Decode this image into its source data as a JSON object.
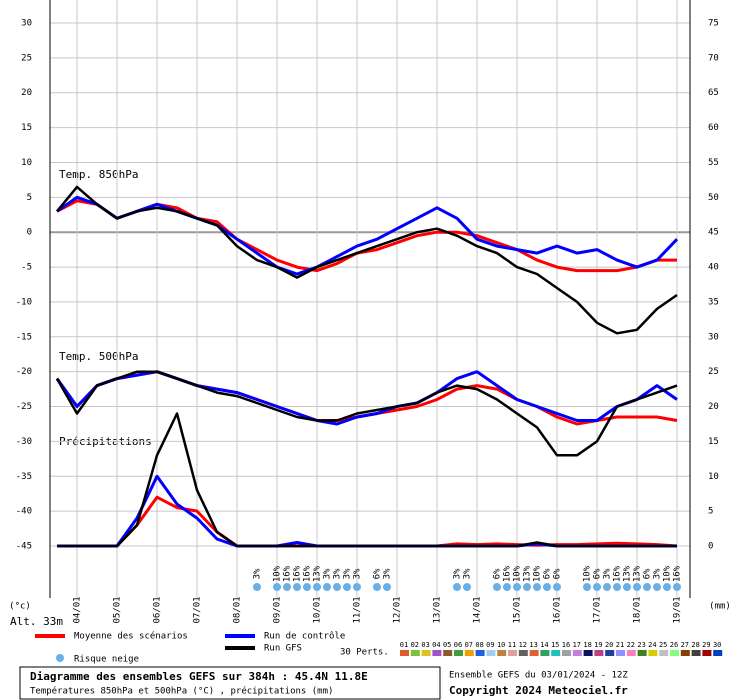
{
  "chart_data": {
    "type": "line",
    "x": [
      -0.5,
      0,
      0.5,
      1,
      1.5,
      2,
      2.5,
      3,
      3.5,
      4,
      4.5,
      5,
      5.5,
      6,
      6.5,
      7,
      7.5,
      8,
      8.5,
      9,
      9.5,
      10,
      10.5,
      11,
      11.5,
      12,
      12.5,
      13,
      13.5,
      14,
      14.5,
      15
    ],
    "xlim": [
      -0.675,
      15.325
    ],
    "xticks": [
      {
        "value": 0,
        "label": "04/01"
      },
      {
        "value": 1,
        "label": "05/01"
      },
      {
        "value": 2,
        "label": "06/01"
      },
      {
        "value": 3,
        "label": "07/01"
      },
      {
        "value": 4,
        "label": "08/01"
      },
      {
        "value": 5,
        "label": "09/01"
      },
      {
        "value": 6,
        "label": "10/01"
      },
      {
        "value": 7,
        "label": "11/01"
      },
      {
        "value": 8,
        "label": "12/01"
      },
      {
        "value": 9,
        "label": "13/01"
      },
      {
        "value": 10,
        "label": "14/01"
      },
      {
        "value": 11,
        "label": "15/01"
      },
      {
        "value": 12,
        "label": "16/01"
      },
      {
        "value": 13,
        "label": "17/01"
      },
      {
        "value": 14,
        "label": "18/01"
      },
      {
        "value": 15,
        "label": "19/01"
      }
    ],
    "ylim": [
      -52.46,
      33.3
    ],
    "yticks": [
      30,
      25,
      20,
      15,
      10,
      5,
      0,
      -5,
      -10,
      -15,
      -20,
      -25,
      -30,
      -35,
      -40,
      -45
    ],
    "y2lim": [
      -7.46,
      78.3
    ],
    "y2ticks": [
      75,
      70,
      65,
      60,
      55,
      50,
      45,
      40,
      35,
      30,
      25,
      20,
      15,
      10,
      5,
      0
    ],
    "ylabel": "(°c)",
    "y2label": "(mm)",
    "grid": true,
    "annotations": [
      "Temp. 850hPa",
      "Temp. 500hPa",
      "Précipitations",
      "Alt. 33m"
    ],
    "series": [
      {
        "name": "Moyenne des scénarios",
        "color": "#ff0000",
        "t850": [
          3,
          4.5,
          4,
          2,
          3,
          4,
          3.5,
          2,
          1.5,
          -1,
          -2.5,
          -4,
          -5,
          -5.5,
          -4.5,
          -3,
          -2.5,
          -1.5,
          -0.5,
          0,
          0,
          -0.5,
          -1.5,
          -2.5,
          -4,
          -5,
          -5.5,
          -5.5,
          -5.5,
          -5,
          -4,
          -4
        ],
        "t500": [
          -21,
          -25,
          -22,
          -21,
          -20.5,
          -20,
          -21,
          -22,
          -22.5,
          -23,
          -24,
          -25,
          -26,
          -27,
          -27,
          -26.5,
          -26,
          -25.5,
          -25,
          -24,
          -22.5,
          -22,
          -22.5,
          -24,
          -25,
          -26.5,
          -27.5,
          -27,
          -26.5,
          -26.5,
          -26.5,
          -27
        ],
        "precip": [
          0,
          0,
          0,
          0,
          3,
          7,
          5.5,
          5,
          2,
          0,
          0,
          0,
          0,
          0,
          0,
          0,
          0,
          0,
          0,
          0,
          0.3,
          0.2,
          0.3,
          0.2,
          0.1,
          0.2,
          0.2,
          0.3,
          0.4,
          0.3,
          0.2,
          0
        ]
      },
      {
        "name": "Run de contrôle",
        "color": "#0000ff",
        "t850": [
          3,
          5,
          4,
          2,
          3,
          4,
          3,
          2,
          1,
          -1,
          -3,
          -5,
          -6,
          -5,
          -3.5,
          -2,
          -1,
          0.5,
          2,
          3.5,
          2,
          -1,
          -2,
          -2.5,
          -3,
          -2,
          -3,
          -2.5,
          -4,
          -5,
          -4,
          -1
        ],
        "t500": [
          -21,
          -25,
          -22,
          -21,
          -20.5,
          -20,
          -21,
          -22,
          -22.5,
          -23,
          -24,
          -25,
          -26,
          -27,
          -27.5,
          -26.5,
          -26,
          -25,
          -24.5,
          -23,
          -21,
          -20,
          -22,
          -24,
          -25,
          -26,
          -27,
          -27,
          -25,
          -24,
          -22,
          -24
        ],
        "precip": [
          0,
          0,
          0,
          0,
          4,
          10,
          6,
          4,
          1,
          0,
          0,
          0,
          0.5,
          0,
          0,
          0,
          0,
          0,
          0,
          0,
          0,
          0,
          0,
          0,
          0.3,
          0,
          0,
          0,
          0,
          0,
          0,
          0
        ]
      },
      {
        "name": "Run GFS",
        "color": "#000000",
        "t850": [
          3,
          6.5,
          4,
          2,
          3,
          3.5,
          3,
          2,
          1,
          -2,
          -4,
          -5,
          -6.5,
          -5,
          -4,
          -3,
          -2,
          -1,
          0,
          0.5,
          -0.5,
          -2,
          -3,
          -5,
          -6,
          -8,
          -10,
          -13,
          -14.5,
          -14,
          -11,
          -9
        ],
        "t500": [
          -21,
          -26,
          -22,
          -21,
          -20,
          -20,
          -21,
          -22,
          -23,
          -23.5,
          -24.5,
          -25.5,
          -26.5,
          -27,
          -27,
          -26,
          -25.5,
          -25,
          -24.5,
          -23,
          -22,
          -22.5,
          -24,
          -26,
          -28,
          -32,
          -32,
          -30,
          -25,
          -24,
          -23,
          -22
        ],
        "precip": [
          0,
          0,
          0,
          0,
          3,
          13,
          19,
          8,
          2,
          0,
          0,
          0,
          0,
          0,
          0,
          0,
          0,
          0,
          0,
          0,
          0,
          0,
          0,
          0,
          0.5,
          0,
          0,
          0,
          0,
          0,
          0,
          0
        ]
      }
    ],
    "snow_risk": {
      "label": "Risque neige",
      "color": "#6ab0e8",
      "x": [
        4.5,
        5,
        5.25,
        5.5,
        5.75,
        6,
        6.25,
        6.5,
        6.75,
        7,
        7.5,
        7.75,
        9.5,
        9.75,
        10.5,
        10.75,
        11,
        11.25,
        11.5,
        11.75,
        12,
        12.75,
        13,
        13.25,
        13.5,
        13.75,
        14,
        14.25,
        14.5,
        14.75,
        15
      ],
      "values": [
        3,
        10,
        16,
        16,
        16,
        13,
        3,
        3,
        3,
        3,
        6,
        3,
        3,
        3,
        6,
        16,
        10,
        13,
        10,
        6,
        6,
        10,
        6,
        3,
        16,
        13,
        13,
        6,
        3,
        10,
        16
      ],
      "value_labels": [
        "3%",
        "10%",
        "16%",
        "16%",
        "16%",
        "13%",
        "3%",
        "3%",
        "3%",
        "3%",
        "6%",
        "3%",
        "3%",
        "3%",
        "6%",
        "16%",
        "10%",
        "13%",
        "10%",
        "6%",
        "6%",
        "10%",
        "6%",
        "3%",
        "16%",
        "13%",
        "13%",
        "6%",
        "3%",
        "10%",
        "16%"
      ]
    },
    "perturbations": {
      "label": "30 Perts.",
      "names": [
        "01",
        "02",
        "03",
        "04",
        "05",
        "06",
        "07",
        "08",
        "09",
        "10",
        "11",
        "12",
        "13",
        "14",
        "15",
        "16",
        "17",
        "18",
        "19",
        "20",
        "21",
        "22",
        "23",
        "24",
        "25",
        "26",
        "27",
        "28",
        "29",
        "30"
      ],
      "colors": [
        "#e05a2a",
        "#7fbf3f",
        "#e0c020",
        "#a050d0",
        "#8b5a2b",
        "#3f9f3f",
        "#f0a000",
        "#2060e0",
        "#a0d0f0",
        "#c08040",
        "#e0a0a0",
        "#606060",
        "#e06030",
        "#30a060",
        "#20c0c0",
        "#a0a0a0",
        "#c080e0",
        "#101060",
        "#c04080",
        "#2040a0",
        "#9090ff",
        "#ff80c0",
        "#408020",
        "#d0d000",
        "#c0c0c0",
        "#80ff80",
        "#804000",
        "#404040",
        "#a00000",
        "#0040c0"
      ]
    },
    "footer": {
      "title": "Diagramme des ensembles GEFS sur 384h : 45.4N 11.8E",
      "subtitle": "Températures 850hPa et 500hPa (°C) , précipitations (mm)",
      "run": "Ensemble GEFS du 03/01/2024 - 12Z",
      "copyright": "Copyright 2024 Meteociel.fr"
    }
  }
}
